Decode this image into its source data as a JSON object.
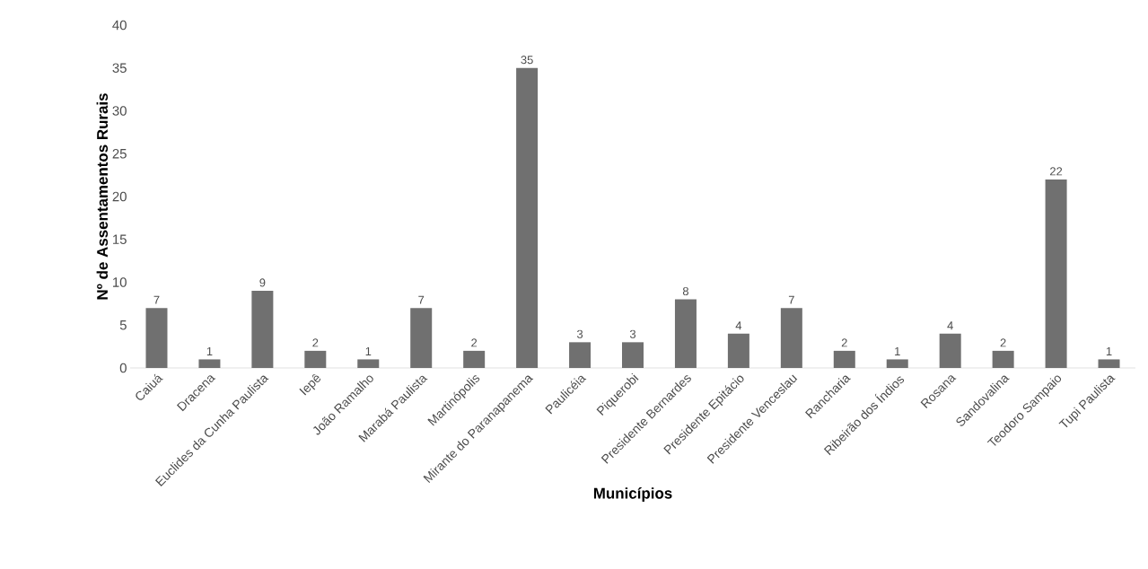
{
  "chart_data": {
    "type": "bar",
    "xlabel": "Municípios",
    "ylabel": "Nº de Assentamentos  Rurais",
    "categories": [
      "Caiuá",
      "Dracena",
      "Euclides da Cunha Paulista",
      "Iepê",
      "João Ramalho",
      "Marabá Paulista",
      "Martinópolis",
      "Mirante do Paranapanema",
      "Paulicéia",
      "Piquerobi",
      "Presidente Bernardes",
      "Presidente Epitácio",
      "Presidente Venceslau",
      "Rancharia",
      "Ribeirão dos Índios",
      "Rosana",
      "Sandovalina",
      "Teodoro Sampaio",
      "Tupi Paulista"
    ],
    "values": [
      7,
      1,
      9,
      2,
      1,
      7,
      2,
      35,
      3,
      3,
      8,
      4,
      7,
      2,
      1,
      4,
      2,
      22,
      1
    ],
    "color": "#707070",
    "ylim": [
      0,
      40
    ],
    "yticks": [
      0,
      5,
      10,
      15,
      20,
      25,
      30,
      35,
      40
    ],
    "grid": false,
    "data_labels": true
  }
}
